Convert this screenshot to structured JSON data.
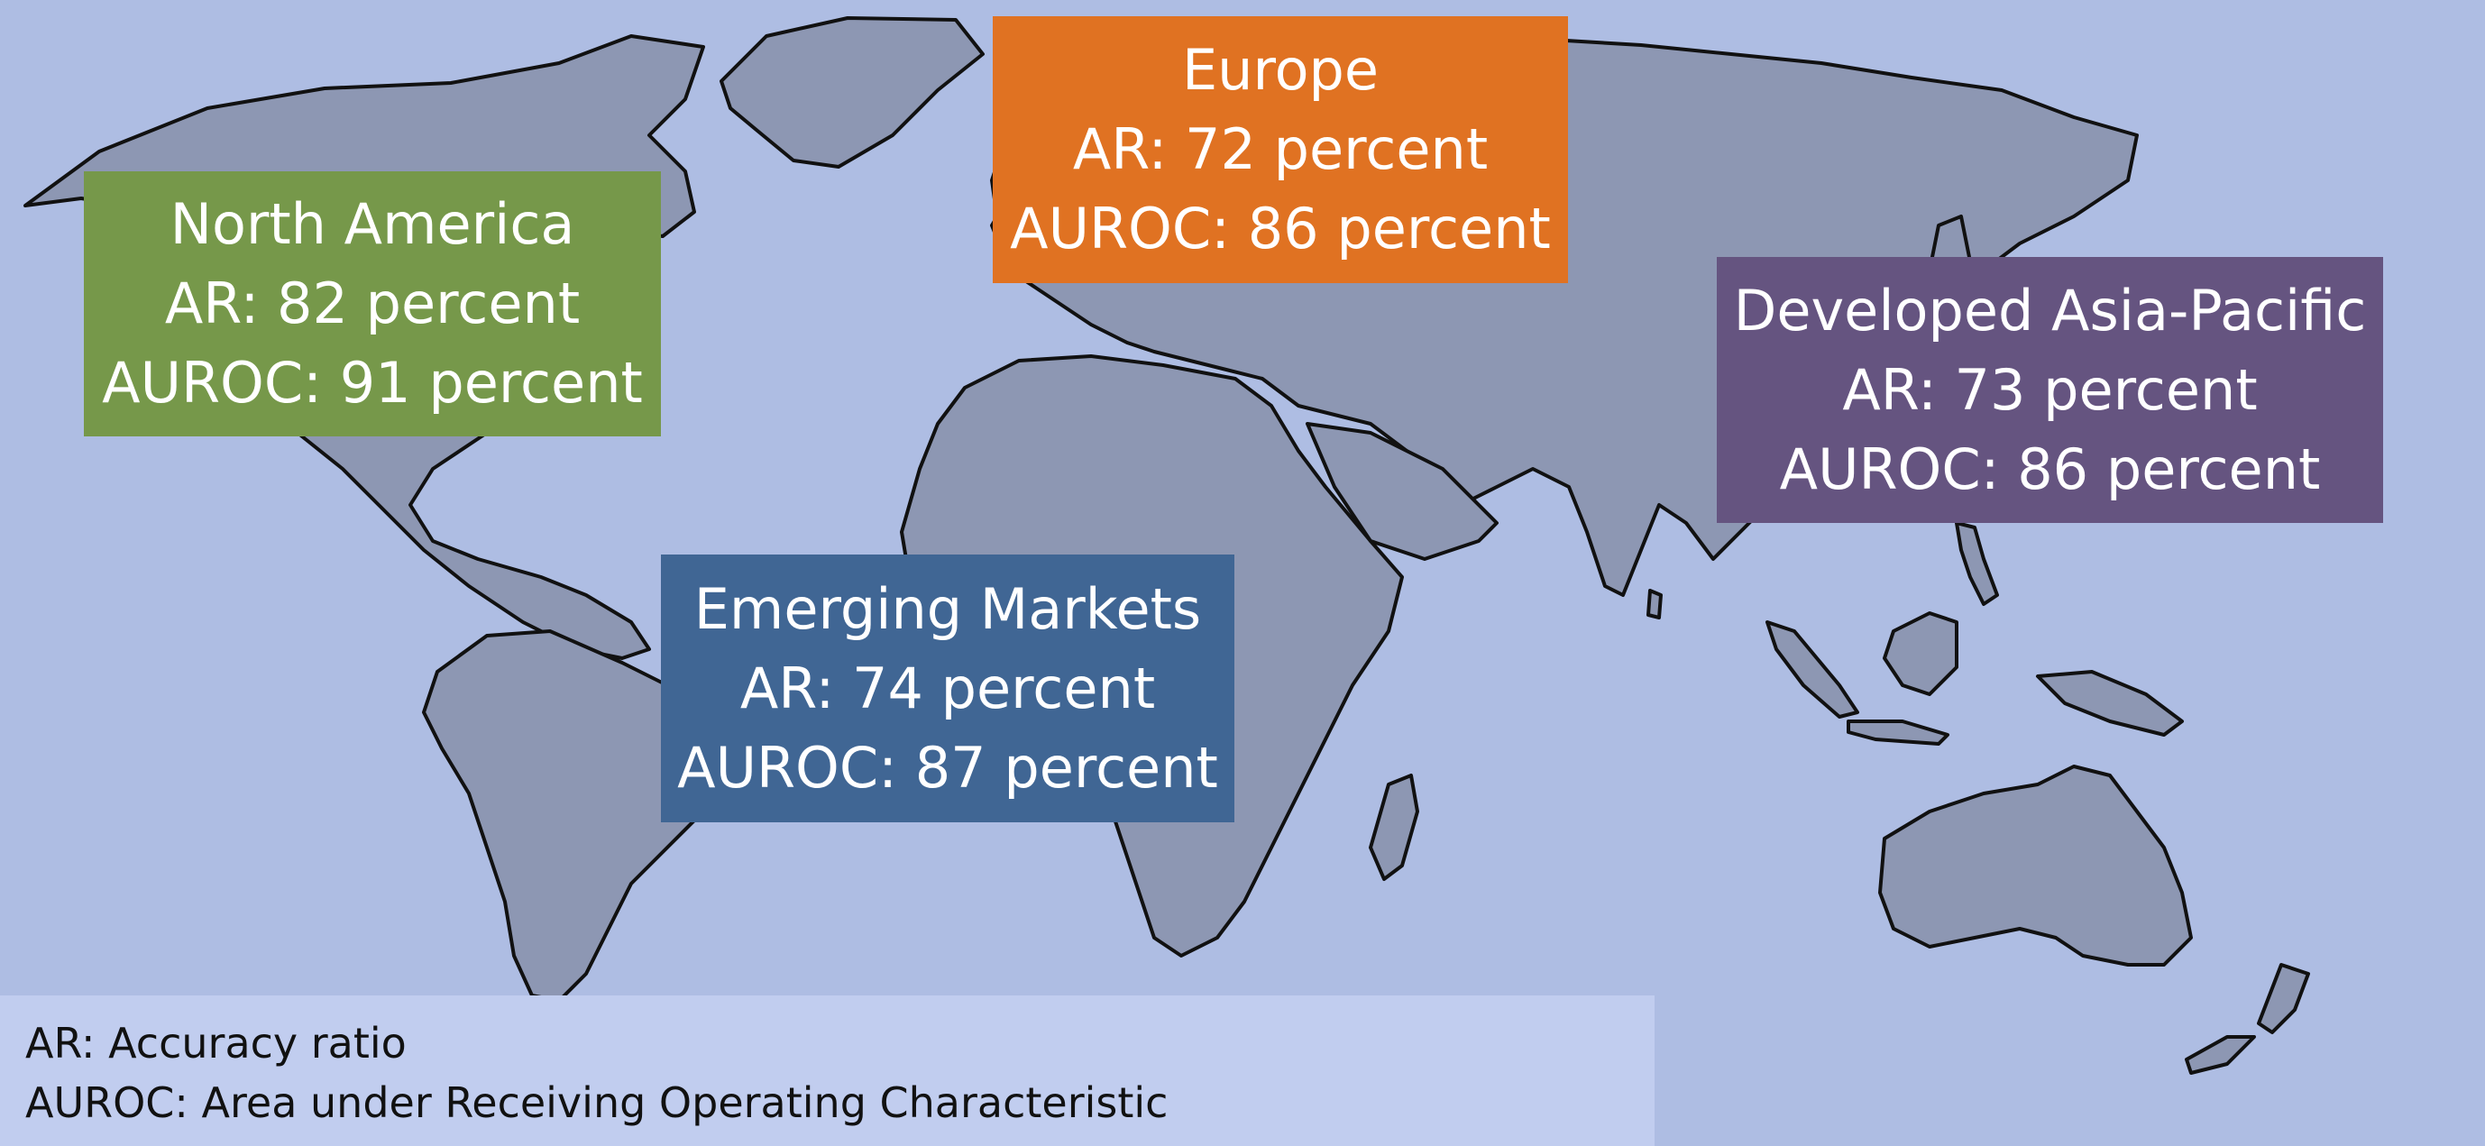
{
  "colors": {
    "ocean": "#aebde3",
    "land": "#8d97b3",
    "coastline": "#111111",
    "legend_background": "#c1cdef",
    "box_text": "#ffffff"
  },
  "regions": [
    {
      "id": "north-america",
      "name": "North America",
      "ar": "AR: 82 percent",
      "auroc": "AUROC: 91 percent",
      "color": "#76984a"
    },
    {
      "id": "europe",
      "name": "Europe",
      "ar": "AR: 72 percent",
      "auroc": "AUROC: 86 percent",
      "color": "#e07222"
    },
    {
      "id": "emerging-markets",
      "name": "Emerging Markets",
      "ar": "AR: 74 percent",
      "auroc": "AUROC: 87 percent",
      "color": "#406694"
    },
    {
      "id": "developed-asia-pacific",
      "name": "Developed Asia-Pacific",
      "ar": "AR: 73 percent",
      "auroc": "AUROC: 86 percent",
      "color": "#655480"
    }
  ],
  "legend": {
    "line1": "AR: Accuracy ratio",
    "line2": "AUROC: Area under Receiving Operating Characteristic"
  }
}
